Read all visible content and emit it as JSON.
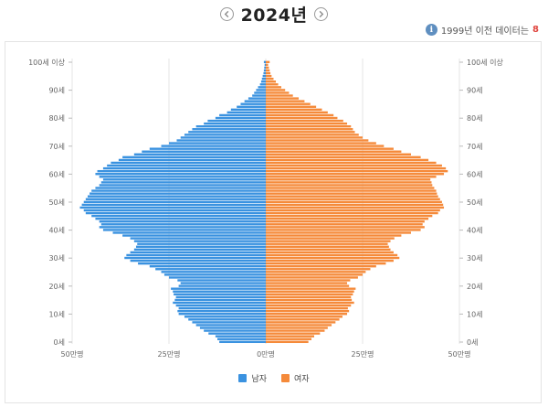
{
  "header": {
    "year_title": "2024년",
    "prev_icon": "chevron-left-icon",
    "next_icon": "chevron-right-icon"
  },
  "info": {
    "icon": "info-icon",
    "text": "1999년 이전 데이터는",
    "count": "8"
  },
  "legend": {
    "male_label": "남자",
    "female_label": "여자"
  },
  "colors": {
    "male": "#3a92e0",
    "female": "#f58a3a",
    "grid": "#e6e6e6"
  },
  "chart_data": {
    "type": "bar",
    "orientation": "horizontal-population-pyramid",
    "title": "2024년",
    "x_unit_labels": [
      "50만명",
      "25만명",
      "0만명",
      "25만명",
      "50만명"
    ],
    "x_range_thousands": [
      -500,
      500
    ],
    "age_tick_labels": [
      "0세",
      "10세",
      "20세",
      "30세",
      "40세",
      "50세",
      "60세",
      "70세",
      "80세",
      "90세",
      "100세 이상"
    ],
    "age_ticks": [
      0,
      10,
      20,
      30,
      40,
      50,
      60,
      70,
      80,
      90,
      100
    ],
    "ages": [
      0,
      1,
      2,
      3,
      4,
      5,
      6,
      7,
      8,
      9,
      10,
      11,
      12,
      13,
      14,
      15,
      16,
      17,
      18,
      19,
      20,
      21,
      22,
      23,
      24,
      25,
      26,
      27,
      28,
      29,
      30,
      31,
      32,
      33,
      34,
      35,
      36,
      37,
      38,
      39,
      40,
      41,
      42,
      43,
      44,
      45,
      46,
      47,
      48,
      49,
      50,
      51,
      52,
      53,
      54,
      55,
      56,
      57,
      58,
      59,
      60,
      61,
      62,
      63,
      64,
      65,
      66,
      67,
      68,
      69,
      70,
      71,
      72,
      73,
      74,
      75,
      76,
      77,
      78,
      79,
      80,
      81,
      82,
      83,
      84,
      85,
      86,
      87,
      88,
      89,
      90,
      91,
      92,
      93,
      94,
      95,
      96,
      97,
      98,
      99,
      100
    ],
    "series": [
      {
        "name": "남자",
        "values": [
          120,
          125,
          130,
          148,
          160,
          170,
          180,
          190,
          200,
          210,
          225,
          228,
          225,
          232,
          240,
          235,
          232,
          238,
          240,
          245,
          225,
          220,
          228,
          250,
          262,
          270,
          285,
          300,
          330,
          350,
          365,
          360,
          350,
          340,
          335,
          332,
          340,
          350,
          370,
          395,
          420,
          430,
          425,
          430,
          440,
          450,
          465,
          470,
          480,
          475,
          470,
          465,
          460,
          455,
          450,
          440,
          430,
          425,
          420,
          430,
          440,
          435,
          420,
          410,
          400,
          380,
          370,
          340,
          320,
          300,
          270,
          250,
          230,
          220,
          210,
          200,
          190,
          180,
          160,
          150,
          130,
          120,
          100,
          90,
          75,
          65,
          55,
          45,
          35,
          30,
          25,
          20,
          15,
          12,
          10,
          8,
          6,
          5,
          4,
          3,
          5
        ]
      },
      {
        "name": "여자",
        "values": [
          110,
          118,
          125,
          140,
          152,
          160,
          170,
          180,
          190,
          198,
          210,
          215,
          212,
          220,
          228,
          222,
          220,
          225,
          228,
          232,
          215,
          210,
          218,
          238,
          250,
          258,
          270,
          285,
          310,
          330,
          345,
          340,
          330,
          322,
          318,
          315,
          322,
          332,
          350,
          375,
          400,
          410,
          405,
          410,
          420,
          430,
          445,
          450,
          460,
          458,
          455,
          450,
          445,
          442,
          440,
          435,
          430,
          428,
          425,
          440,
          460,
          470,
          465,
          455,
          440,
          420,
          400,
          375,
          350,
          330,
          305,
          285,
          265,
          250,
          240,
          230,
          225,
          220,
          210,
          200,
          185,
          175,
          160,
          145,
          130,
          115,
          100,
          85,
          70,
          60,
          50,
          40,
          32,
          26,
          20,
          15,
          12,
          10,
          8,
          6,
          10
        ]
      }
    ]
  }
}
